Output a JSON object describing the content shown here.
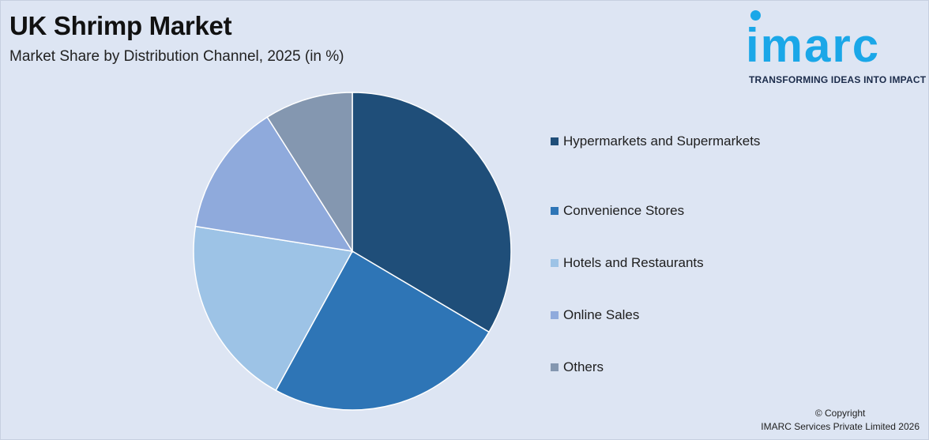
{
  "header": {
    "title": "UK Shrimp Market",
    "subtitle": "Market Share by Distribution Channel, 2025 (in %)"
  },
  "logo": {
    "wordmark": "imarc",
    "tagline": "TRANSFORMING IDEAS INTO IMPACT",
    "color": "#1aa7e8"
  },
  "chart_data": {
    "type": "pie",
    "title": "UK Shrimp Market",
    "subtitle": "Market Share by Distribution Channel, 2025 (in %)",
    "legend_placement": "right",
    "categories": [
      "Hypermarkets and Supermarkets",
      "Convenience Stores",
      "Hotels and Restaurants",
      "Online Sales",
      "Others"
    ],
    "values": [
      33.5,
      24.5,
      19.5,
      13.5,
      9.0
    ],
    "colors": [
      "#1f4e79",
      "#2e75b6",
      "#9dc3e6",
      "#8faadc",
      "#8497b0"
    ]
  },
  "footer": {
    "copyright_line1": "© Copyright",
    "copyright_line2": "IMARC Services Private Limited 2026"
  }
}
